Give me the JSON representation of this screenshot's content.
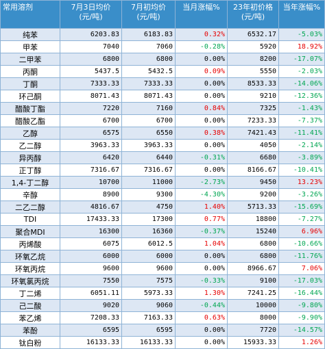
{
  "headers": [
    {
      "text": "常用溶剂"
    },
    {
      "line1": "7月3日均价",
      "line2": "(元/吨)"
    },
    {
      "line1": "7月初均价",
      "line2": "(元/吨)"
    },
    {
      "line1": "当月涨幅%"
    },
    {
      "line1": "23年初价格",
      "line2": "(元/吨)"
    },
    {
      "line1": "当年涨幅%"
    }
  ],
  "rows": [
    {
      "name": "纯苯",
      "jul3": "6203.83",
      "jul1": "6183.83",
      "mchg": "0.32%",
      "y23": "6532.17",
      "ychg": "-5.03%"
    },
    {
      "name": "甲苯",
      "jul3": "7040",
      "jul1": "7060",
      "mchg": "-0.28%",
      "y23": "5920",
      "ychg": "18.92%"
    },
    {
      "name": "二甲苯",
      "jul3": "6800",
      "jul1": "6800",
      "mchg": "0.00%",
      "y23": "8200",
      "ychg": "-17.07%"
    },
    {
      "name": "丙酮",
      "jul3": "5437.5",
      "jul1": "5432.5",
      "mchg": "0.09%",
      "y23": "5550",
      "ychg": "-2.03%"
    },
    {
      "name": "丁酮",
      "jul3": "7333.33",
      "jul1": "7333.33",
      "mchg": "0.00%",
      "y23": "8533.33",
      "ychg": "-14.06%"
    },
    {
      "name": "环己酮",
      "jul3": "8071.43",
      "jul1": "8071.43",
      "mchg": "0.00%",
      "y23": "9210",
      "ychg": "-12.36%"
    },
    {
      "name": "醋酸丁酯",
      "jul3": "7220",
      "jul1": "7160",
      "mchg": "0.84%",
      "y23": "7325",
      "ychg": "-1.43%"
    },
    {
      "name": "醋酸乙酯",
      "jul3": "6700",
      "jul1": "6700",
      "mchg": "0.00%",
      "y23": "7233.33",
      "ychg": "-7.37%"
    },
    {
      "name": "乙醇",
      "jul3": "6575",
      "jul1": "6550",
      "mchg": "0.38%",
      "y23": "7421.43",
      "ychg": "-11.41%"
    },
    {
      "name": "乙二醇",
      "jul3": "3963.33",
      "jul1": "3963.33",
      "mchg": "0.00%",
      "y23": "4050",
      "ychg": "-2.14%"
    },
    {
      "name": "异丙醇",
      "jul3": "6420",
      "jul1": "6440",
      "mchg": "-0.31%",
      "y23": "6680",
      "ychg": "-3.89%"
    },
    {
      "name": "正丁醇",
      "jul3": "7316.67",
      "jul1": "7316.67",
      "mchg": "0.00%",
      "y23": "8166.67",
      "ychg": "-10.41%"
    },
    {
      "name": "1,4-丁二醇",
      "jul3": "10700",
      "jul1": "11000",
      "mchg": "-2.73%",
      "y23": "9450",
      "ychg": "13.23%"
    },
    {
      "name": "辛醇",
      "jul3": "8900",
      "jul1": "9300",
      "mchg": "-4.30%",
      "y23": "9200",
      "ychg": "-3.26%"
    },
    {
      "name": "二乙二醇",
      "jul3": "4816.67",
      "jul1": "4750",
      "mchg": "1.40%",
      "y23": "5713.33",
      "ychg": "-15.69%"
    },
    {
      "name": "TDI",
      "jul3": "17433.33",
      "jul1": "17300",
      "mchg": "0.77%",
      "y23": "18800",
      "ychg": "-7.27%"
    },
    {
      "name": "聚合MDI",
      "jul3": "16300",
      "jul1": "16360",
      "mchg": "-0.37%",
      "y23": "15240",
      "ychg": "6.96%"
    },
    {
      "name": "丙烯酸",
      "jul3": "6075",
      "jul1": "6012.5",
      "mchg": "1.04%",
      "y23": "6800",
      "ychg": "-10.66%"
    },
    {
      "name": "环氧乙烷",
      "jul3": "6000",
      "jul1": "6000",
      "mchg": "0.00%",
      "y23": "6800",
      "ychg": "-11.76%"
    },
    {
      "name": "环氧丙烷",
      "jul3": "9600",
      "jul1": "9600",
      "mchg": "0.00%",
      "y23": "8966.67",
      "ychg": "7.06%"
    },
    {
      "name": "环氧氯丙烷",
      "jul3": "7550",
      "jul1": "7575",
      "mchg": "-0.33%",
      "y23": "9100",
      "ychg": "-17.03%"
    },
    {
      "name": "丁二烯",
      "jul3": "6051.11",
      "jul1": "5973.33",
      "mchg": "1.30%",
      "y23": "7241.25",
      "ychg": "-16.44%"
    },
    {
      "name": "己二酸",
      "jul3": "9020",
      "jul1": "9060",
      "mchg": "-0.44%",
      "y23": "10000",
      "ychg": "-9.80%"
    },
    {
      "name": "苯乙烯",
      "jul3": "7208.33",
      "jul1": "7163.33",
      "mchg": "0.63%",
      "y23": "8000",
      "ychg": "-9.90%"
    },
    {
      "name": "苯酚",
      "jul3": "6595",
      "jul1": "6595",
      "mchg": "0.00%",
      "y23": "7720",
      "ychg": "-14.57%"
    },
    {
      "name": "钛白粉",
      "jul3": "16133.33",
      "jul1": "16133.33",
      "mchg": "0.00%",
      "y23": "15933.33",
      "ychg": "1.26%"
    }
  ],
  "colors": {
    "header_bg": "#3a8ec9",
    "stripe": "#dde7f4",
    "border": "#8eb3d6",
    "positive": "#e60000",
    "negative": "#00a651"
  }
}
